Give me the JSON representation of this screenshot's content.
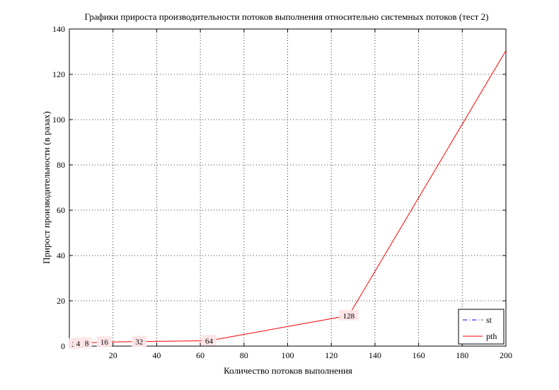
{
  "chart_data": {
    "type": "line",
    "title": "Графики прироста производительности потоков выполнения относительно системных потоков (тест 2)",
    "xlabel": "Количество потоков выполнения",
    "ylabel": "Прирост производительности (в разах)",
    "xlim": [
      0,
      200
    ],
    "ylim": [
      0,
      140
    ],
    "xticks": [
      0,
      20,
      40,
      60,
      80,
      100,
      120,
      140,
      160,
      180,
      200
    ],
    "yticks": [
      0,
      20,
      40,
      60,
      80,
      100,
      120,
      140
    ],
    "xtick_labels": [
      "",
      "20",
      "40",
      "60",
      "80",
      "100",
      "120",
      "140",
      "160",
      "180",
      "200"
    ],
    "ytick_labels": [
      "0",
      "20",
      "40",
      "60",
      "80",
      "100",
      "120",
      "140"
    ],
    "grid": true,
    "legend_position": "bottom-right",
    "series": [
      {
        "name": "st",
        "color": "#0000ff",
        "line_style": "dash-dot",
        "x": [],
        "y": []
      },
      {
        "name": "pth",
        "color": "#ff0000",
        "line_style": "solid",
        "x": [
          2,
          4,
          8,
          16,
          32,
          64,
          128,
          200
        ],
        "y": [
          1.0,
          1.2,
          1.4,
          1.8,
          2.0,
          2.4,
          13.5,
          130.5
        ]
      }
    ],
    "data_labels": [
      {
        "text": "2",
        "x": 2,
        "y": 1.0
      },
      {
        "text": "4",
        "x": 4,
        "y": 1.2
      },
      {
        "text": "8",
        "x": 8,
        "y": 1.4
      },
      {
        "text": "16",
        "x": 16,
        "y": 1.8
      },
      {
        "text": "32",
        "x": 32,
        "y": 2.0
      },
      {
        "text": "64",
        "x": 64,
        "y": 2.4
      },
      {
        "text": "128",
        "x": 128,
        "y": 13.5
      }
    ]
  }
}
